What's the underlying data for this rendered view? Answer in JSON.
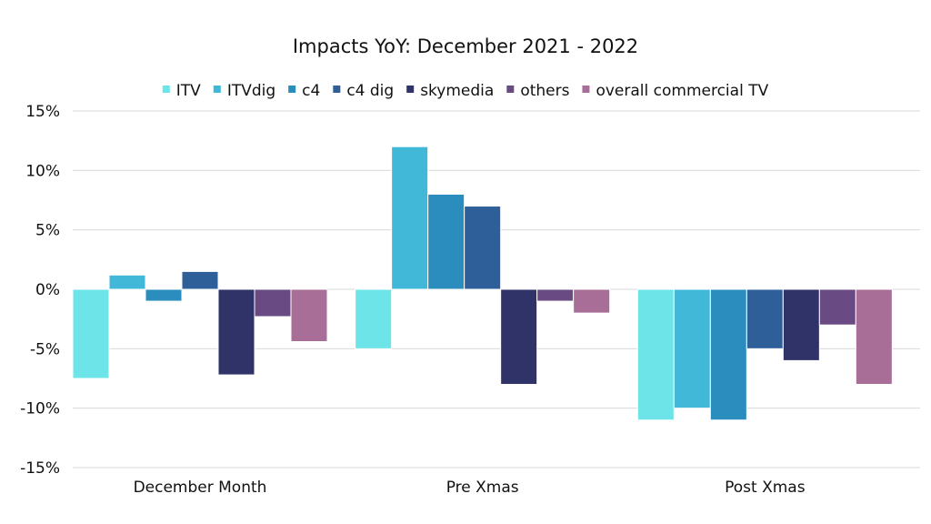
{
  "chart_data": {
    "type": "bar",
    "title": "Impacts YoY: December 2021 - 2022",
    "xlabel": "",
    "ylabel": "",
    "categories": [
      "December Month",
      "Pre Xmas",
      "Post Xmas"
    ],
    "ylim": [
      -15,
      15
    ],
    "yticks": [
      15,
      10,
      5,
      0,
      -5,
      -10,
      -15
    ],
    "ytick_labels": [
      "15%",
      "10%",
      "5%",
      "0%",
      "-5%",
      "-10%",
      "-15%"
    ],
    "grid": true,
    "legend_position": "top",
    "series": [
      {
        "name": "ITV",
        "color": "#6ce4e8",
        "values": [
          -7.5,
          -5,
          -11
        ]
      },
      {
        "name": "ITVdig",
        "color": "#41b8d8",
        "values": [
          1.2,
          12,
          -10
        ]
      },
      {
        "name": "c4",
        "color": "#2b8cbe",
        "values": [
          -1,
          8,
          -11
        ]
      },
      {
        "name": "c4 dig",
        "color": "#2e5f99",
        "values": [
          1.5,
          7,
          -5
        ]
      },
      {
        "name": "skymedia",
        "color": "#2f3368",
        "values": [
          -7.2,
          -8,
          -6
        ]
      },
      {
        "name": "others",
        "color": "#6a4a82",
        "values": [
          -2.3,
          -1,
          -3
        ]
      },
      {
        "name": "overall commercial TV",
        "color": "#a86e98",
        "values": [
          -4.4,
          -2,
          -8
        ]
      }
    ]
  }
}
